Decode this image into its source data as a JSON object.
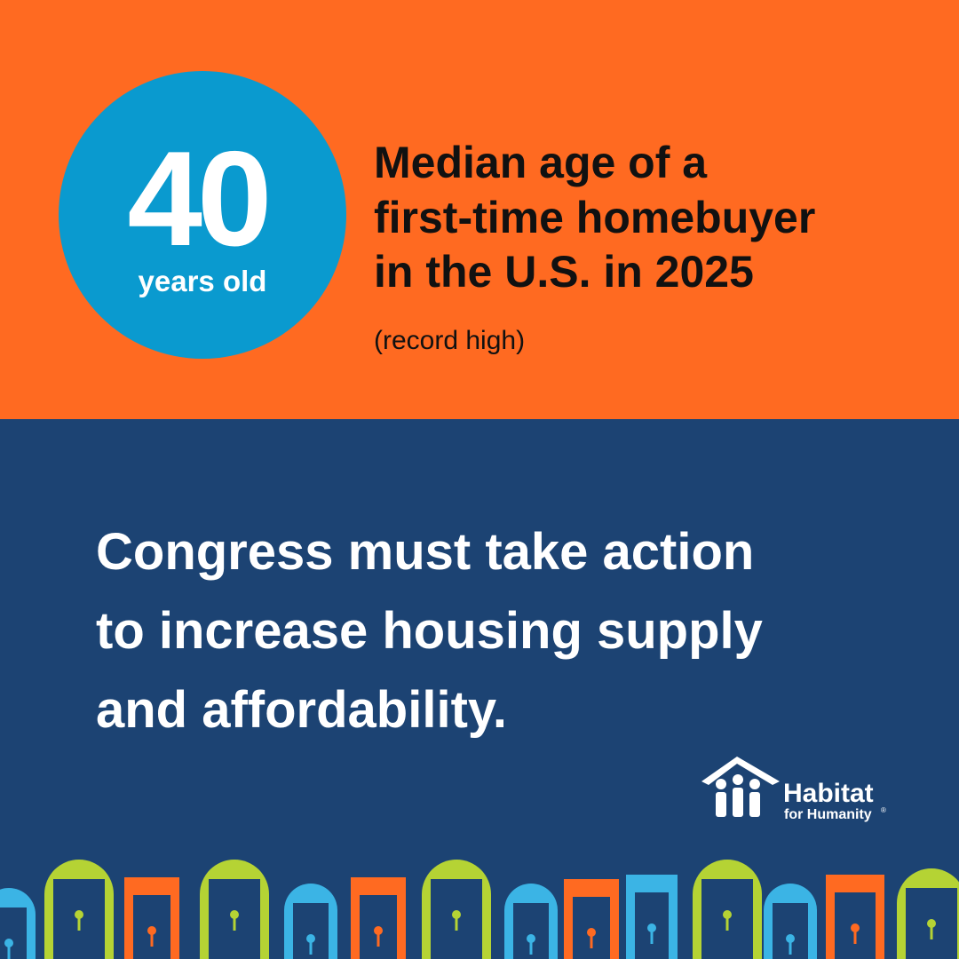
{
  "badge": {
    "number": 40,
    "unit": "years old"
  },
  "headline": {
    "lines": [
      "Median age of a",
      "first-time homebuyer",
      "in the U.S. in 2025"
    ],
    "note": "(record high)"
  },
  "message": {
    "lines": [
      "Congress must take action",
      "to increase housing supply",
      "and affordability."
    ]
  },
  "logo": {
    "name": "Habitat",
    "tagline": "for Humanity",
    "mark": "®"
  }
}
